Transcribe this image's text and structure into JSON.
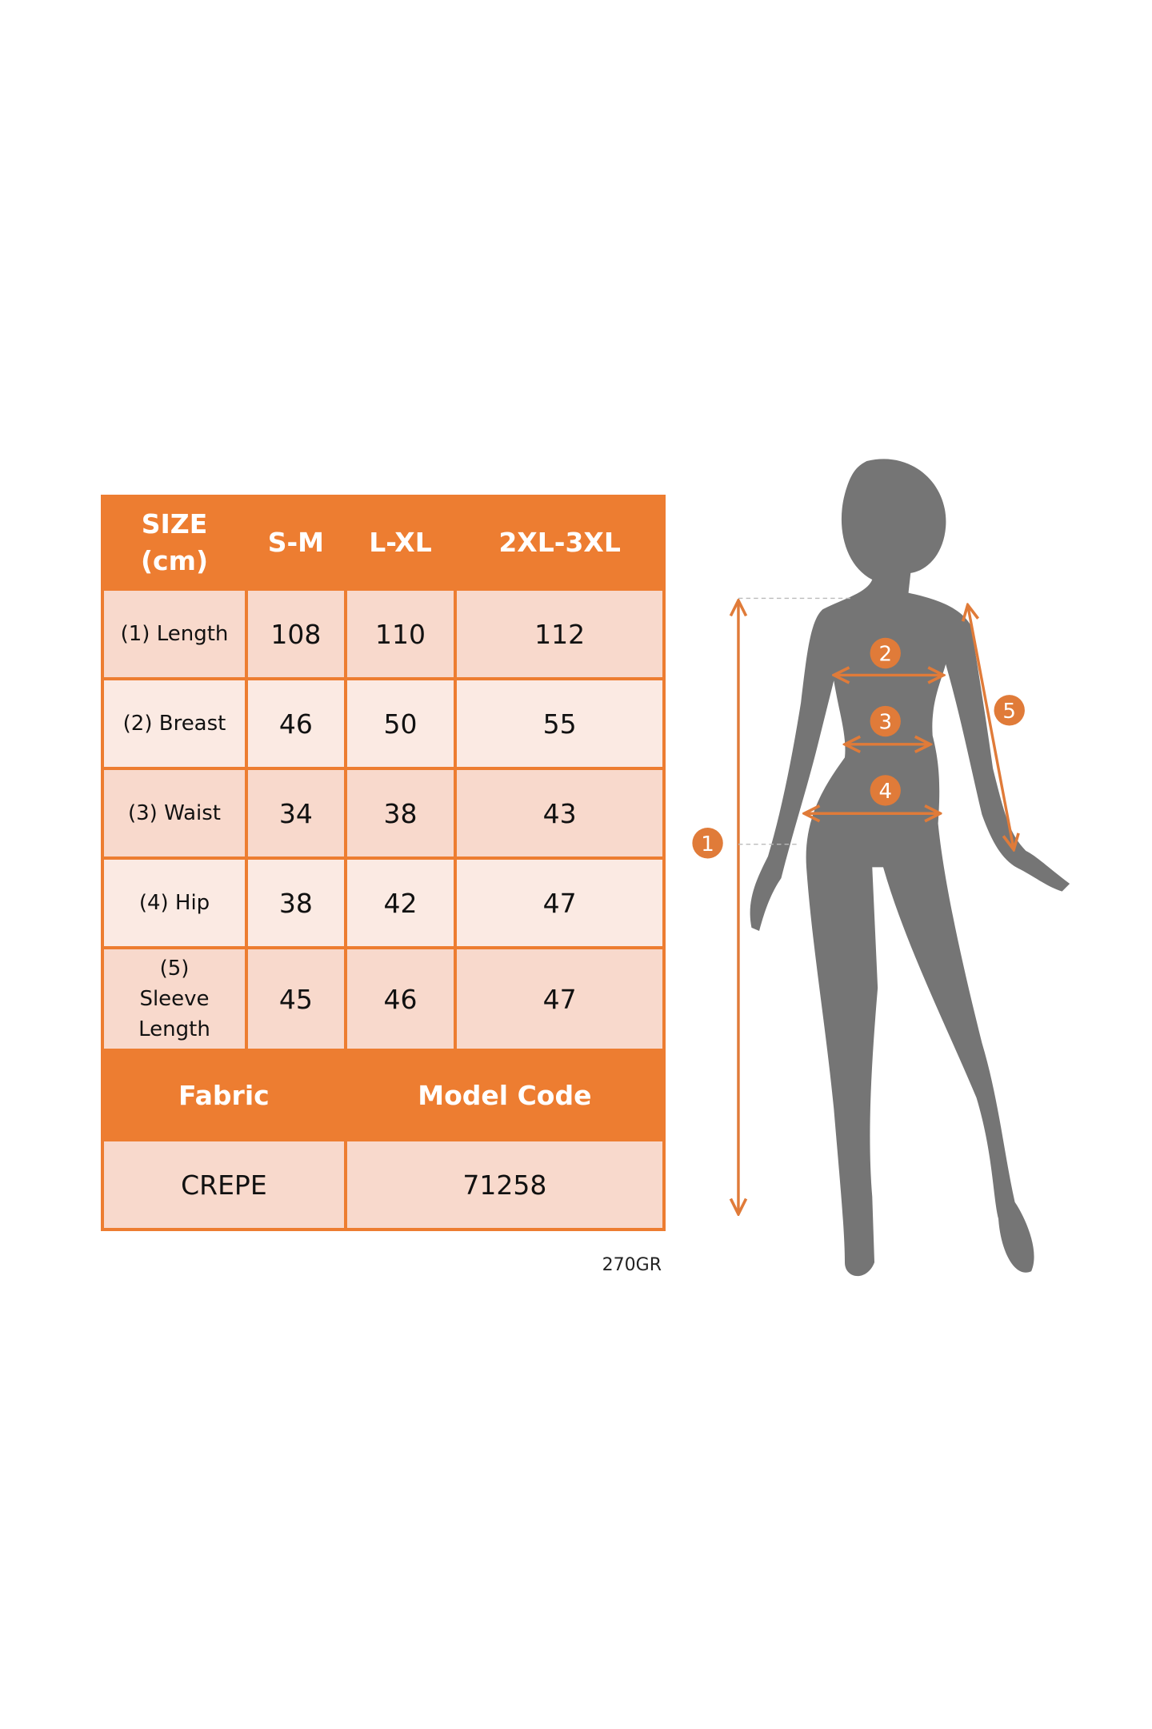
{
  "table": {
    "header": [
      "SIZE\n(cm)",
      "S-M",
      "L-XL",
      "2XL-3XL"
    ],
    "size_label_line1": "SIZE",
    "size_label_line2": "(cm)",
    "rows": [
      {
        "label": "(1) Length",
        "values": [
          "108",
          "110",
          "112"
        ]
      },
      {
        "label": "(2) Breast",
        "values": [
          "46",
          "50",
          "55"
        ]
      },
      {
        "label": "(3) Waist",
        "values": [
          "34",
          "38",
          "43"
        ]
      },
      {
        "label": "(4) Hip",
        "values": [
          "38",
          "42",
          "47"
        ]
      },
      {
        "label": "(5) Sleeve Length",
        "values": [
          "45",
          "46",
          "47"
        ]
      }
    ],
    "footer_headers": [
      "Fabric",
      "Model Code"
    ],
    "footer_values": [
      "CREPE",
      "71258"
    ]
  },
  "weight_note": "270GR",
  "figure": {
    "markers": [
      "1",
      "2",
      "3",
      "4",
      "5"
    ]
  },
  "colors": {
    "accent": "#ed7d31",
    "row_dark": "#f8d9cc",
    "row_light": "#fbeae3",
    "silhouette": "#757575"
  }
}
